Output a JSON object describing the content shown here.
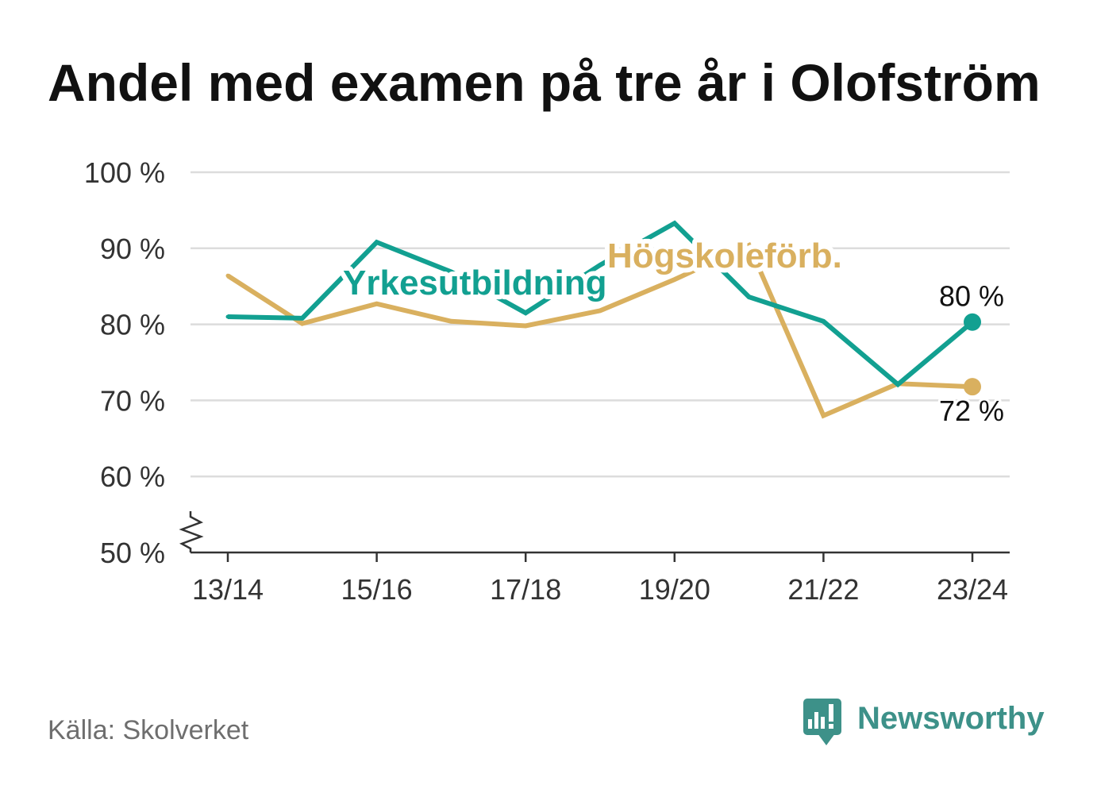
{
  "source": "Källa: Skolverket",
  "brand": {
    "name": "Newsworthy",
    "icon": "newsworthy-logo-icon",
    "color": "#3d9189"
  },
  "colors": {
    "background": "#ffffff",
    "title": "#111111",
    "text": "#333333",
    "end_label": "#111111",
    "source": "#6e6e6e",
    "grid": "#dcdcdc",
    "axis": "#333333"
  },
  "chart_data": {
    "type": "line",
    "title": "Andel med examen på tre år i Olofström",
    "categories": [
      "13/14",
      "",
      "15/16",
      "",
      "17/18",
      "",
      "19/20",
      "",
      "21/22",
      "",
      "23/24"
    ],
    "y_ticks": [
      100,
      90,
      80,
      70,
      60,
      50
    ],
    "y_tick_labels": [
      "100 %",
      "90 %",
      "80 %",
      "70 %",
      "60 %",
      "50 %"
    ],
    "ylim": [
      50,
      100
    ],
    "y_axis_break": true,
    "grid": true,
    "legend": "inline",
    "series": [
      {
        "name": "Yrkesutbildning",
        "color": "#12a091",
        "values": [
          81.0,
          80.8,
          90.8,
          86.9,
          81.5,
          87.8,
          93.3,
          83.6,
          80.4,
          72.1,
          80.3
        ],
        "end_label": "80 %"
      },
      {
        "name": "Högskoleförb.",
        "color": "#d9b05f",
        "values": [
          86.4,
          80.1,
          82.7,
          80.4,
          79.8,
          81.8,
          85.9,
          90.4,
          68.0,
          72.2,
          71.8
        ],
        "end_label": "72 %"
      }
    ]
  }
}
